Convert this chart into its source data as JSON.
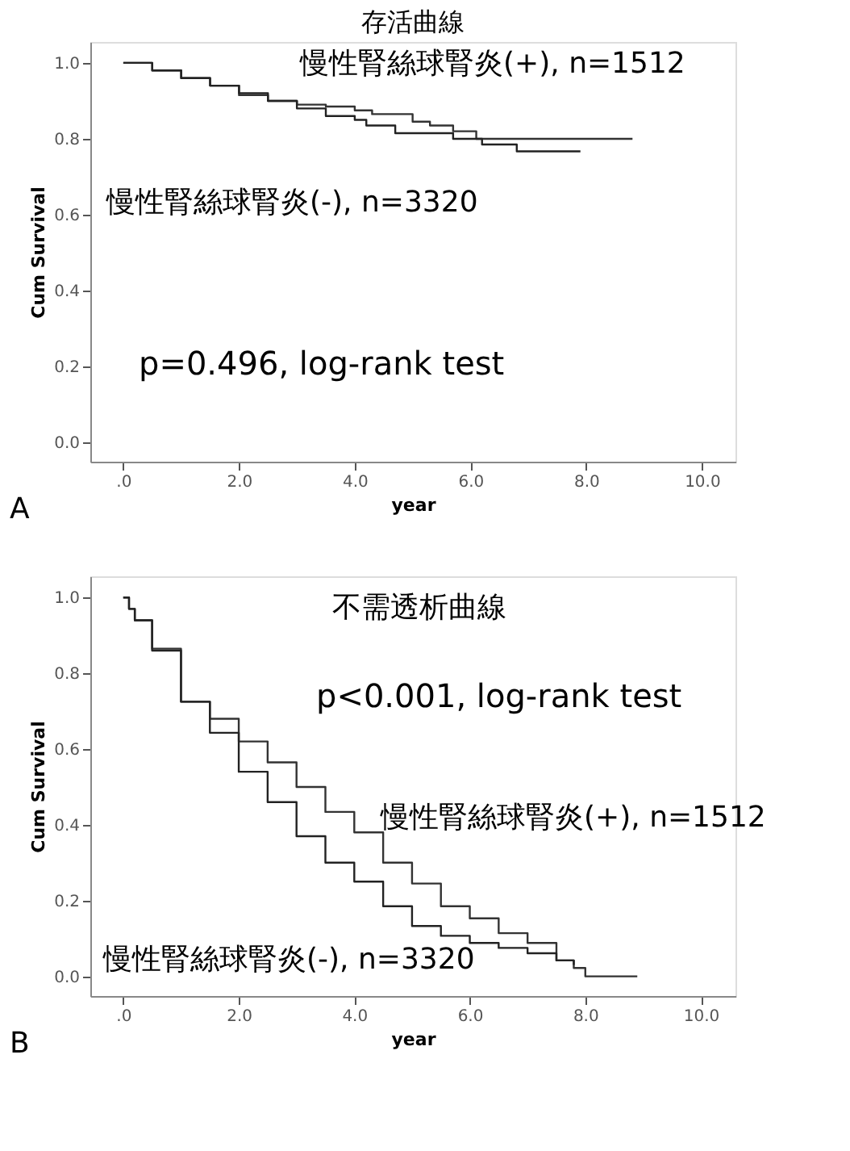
{
  "chart_data": [
    {
      "type": "step",
      "title": "存活曲線",
      "xlabel": "year",
      "ylabel": "Cum Survival",
      "xlim": [
        -0.57,
        10.58
      ],
      "ylim": [
        -0.05,
        1.055
      ],
      "xticks": [
        {
          "value": 0,
          "label": ".0"
        },
        {
          "value": 2,
          "label": "2.0"
        },
        {
          "value": 4,
          "label": "4.0"
        },
        {
          "value": 6,
          "label": "6.0"
        },
        {
          "value": 8,
          "label": "8.0"
        },
        {
          "value": 10,
          "label": "10.0"
        }
      ],
      "yticks": [
        {
          "value": 0,
          "label": "0.0"
        },
        {
          "value": 0.2,
          "label": "0.2"
        },
        {
          "value": 0.4,
          "label": "0.4"
        },
        {
          "value": 0.6,
          "label": "0.6"
        },
        {
          "value": 0.8,
          "label": "0.8"
        },
        {
          "value": 1,
          "label": "1.0"
        }
      ],
      "grid": false,
      "legend": false,
      "series": [
        {
          "name": "慢性腎絲球腎炎(+), n=1512",
          "color": "#333333",
          "x": [
            0,
            0.5,
            1,
            1.5,
            2,
            2.5,
            3,
            3.5,
            4,
            4.3,
            5.0,
            5.3,
            5.7,
            6.1,
            8.8
          ],
          "values": [
            1.0,
            0.98,
            0.96,
            0.94,
            0.915,
            0.9,
            0.89,
            0.885,
            0.875,
            0.865,
            0.845,
            0.835,
            0.82,
            0.8,
            0.8
          ]
        },
        {
          "name": "慢性腎絲球腎炎(-), n=3320",
          "color": "#222222",
          "x": [
            0,
            0.5,
            1,
            1.5,
            2,
            2.5,
            3,
            3.5,
            4,
            4.2,
            4.7,
            5.7,
            6.2,
            6.8,
            7.9
          ],
          "values": [
            1.0,
            0.98,
            0.96,
            0.94,
            0.92,
            0.9,
            0.88,
            0.86,
            0.85,
            0.835,
            0.815,
            0.8,
            0.785,
            0.767,
            0.767
          ]
        }
      ],
      "annotations": [
        "p=0.496, log-rank test",
        "A"
      ]
    },
    {
      "type": "step",
      "xlabel": "year",
      "ylabel": "Cum Survival",
      "xlim": [
        -0.57,
        10.6
      ],
      "ylim": [
        -0.052,
        1.056
      ],
      "xticks": [
        {
          "value": 0,
          "label": ".0"
        },
        {
          "value": 2,
          "label": "2.0"
        },
        {
          "value": 4,
          "label": "4.0"
        },
        {
          "value": 6,
          "label": "6.0"
        },
        {
          "value": 8,
          "label": "8.0"
        },
        {
          "value": 10,
          "label": "10.0"
        }
      ],
      "yticks": [
        {
          "value": 0,
          "label": "0.0"
        },
        {
          "value": 0.2,
          "label": "0.2"
        },
        {
          "value": 0.4,
          "label": "0.4"
        },
        {
          "value": 0.6,
          "label": "0.6"
        },
        {
          "value": 0.8,
          "label": "0.8"
        },
        {
          "value": 1,
          "label": "1.0"
        }
      ],
      "grid": false,
      "legend": false,
      "series": [
        {
          "name": "慢性腎絲球腎炎(+), n=1512",
          "color": "#333333",
          "x": [
            0,
            0.1,
            0.2,
            0.5,
            1,
            1.5,
            2,
            2.5,
            3,
            3.5,
            4,
            4.5,
            5,
            5.5,
            6,
            6.5,
            7,
            7.5,
            7.8,
            8.0,
            8.9
          ],
          "values": [
            1.0,
            0.97,
            0.94,
            0.865,
            0.725,
            0.68,
            0.62,
            0.565,
            0.5,
            0.434,
            0.38,
            0.3,
            0.245,
            0.185,
            0.153,
            0.114,
            0.088,
            0.042,
            0.022,
            0.0,
            0.0
          ]
        },
        {
          "name": "慢性腎絲球腎炎(-), n=3320",
          "color": "#222222",
          "x": [
            0,
            0.1,
            0.2,
            0.5,
            1,
            1.5,
            2,
            2.5,
            3,
            3.5,
            4,
            4.5,
            5,
            5.5,
            6,
            6.5,
            7,
            7.5,
            7.8
          ],
          "values": [
            1.0,
            0.97,
            0.94,
            0.86,
            0.725,
            0.643,
            0.54,
            0.46,
            0.37,
            0.3,
            0.25,
            0.185,
            0.133,
            0.107,
            0.088,
            0.075,
            0.061,
            0.042,
            0.03
          ]
        }
      ],
      "annotations": [
        "不需透析曲線",
        "p<0.001, log-rank test",
        "B"
      ]
    }
  ]
}
